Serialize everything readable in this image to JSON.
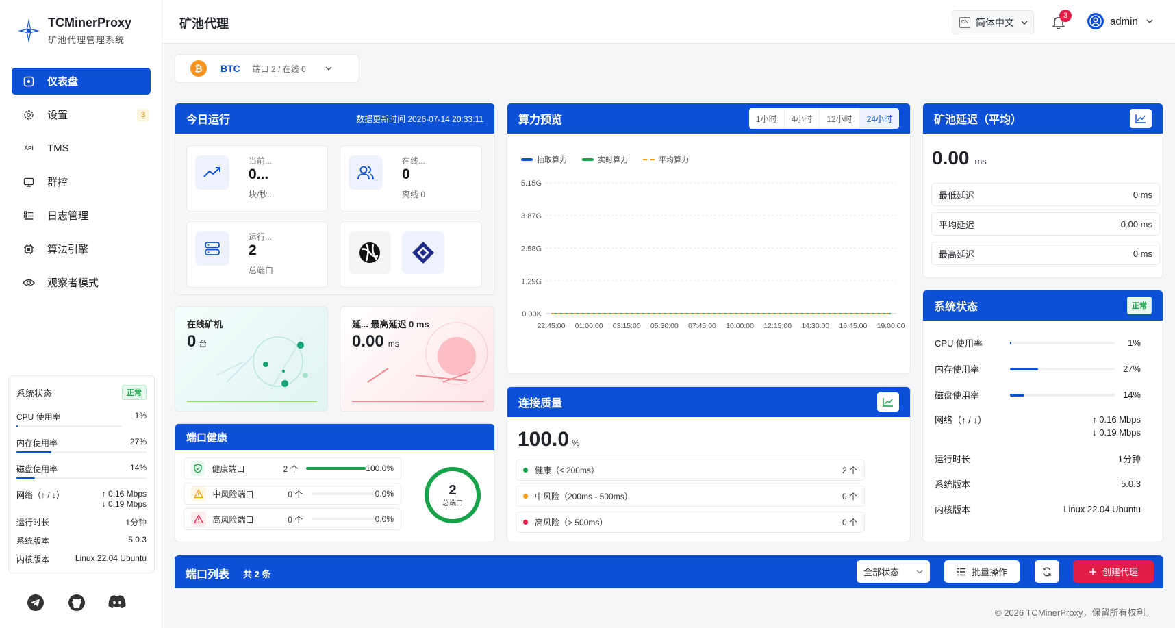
{
  "brand": {
    "title": "TCMinerProxy",
    "subtitle": "矿池代理管理系统"
  },
  "sidebar": {
    "items": [
      {
        "label": "仪表盘",
        "icon": "dashboard-icon"
      },
      {
        "label": "设置",
        "icon": "gear-icon",
        "badge": "3"
      },
      {
        "label": "TMS",
        "icon": "api-icon"
      },
      {
        "label": "群控",
        "icon": "monitor-icon"
      },
      {
        "label": "日志管理",
        "icon": "log-icon"
      },
      {
        "label": "算法引擎",
        "icon": "chip-icon"
      },
      {
        "label": "观察者模式",
        "icon": "eye-icon"
      }
    ],
    "api_text": "API",
    "status": {
      "title": "系统状态",
      "tag": "正常",
      "cpu_label": "CPU 使用率",
      "cpu_value": "1%",
      "cpu_pct": 1,
      "mem_label": "内存使用率",
      "mem_value": "27%",
      "mem_pct": 27,
      "disk_label": "磁盘使用率",
      "disk_value": "14%",
      "disk_pct": 14,
      "net_label": "网络（↑ / ↓）",
      "net_up": "↑  0.16 Mbps",
      "net_down": "↓  0.19 Mbps",
      "uptime_label": "运行时长",
      "uptime_value": "1分钟",
      "version_label": "系统版本",
      "version_value": "5.0.3",
      "kernel_label": "内核版本",
      "kernel_value": "Linux 22.04 Ubuntu"
    }
  },
  "header": {
    "title": "矿池代理",
    "lang": "简体中文",
    "lang_code": "CN",
    "notif_count": "3",
    "user": "admin"
  },
  "coin": {
    "name": "BTC",
    "info": "端口 2 / 在线 0"
  },
  "today": {
    "title": "今日运行",
    "updated": "数据更新时间 2026-07-14 20:33:11",
    "current": {
      "label": "当前...",
      "value": "0...",
      "sub": "块/秒..."
    },
    "online": {
      "label": "在线...",
      "value": "0",
      "sub": "离线 0"
    },
    "running": {
      "label": "运行...",
      "value": "2",
      "sub": "总端口"
    }
  },
  "miners_card": {
    "label": "在线矿机",
    "value": "0",
    "unit": "台"
  },
  "latency_card": {
    "label": "延...  最高延迟 0 ms",
    "value": "0.00",
    "unit": "ms"
  },
  "port_health": {
    "title": "端口健康",
    "rows": [
      {
        "label": "健康端口",
        "count": "2 个",
        "pct": "100.0%",
        "fill": 100,
        "color": "#16a34a"
      },
      {
        "label": "中风险端口",
        "count": "0 个",
        "pct": "0.0%",
        "fill": 0,
        "color": "#f59e0b"
      },
      {
        "label": "高风险端口",
        "count": "0 个",
        "pct": "0.0%",
        "fill": 0,
        "color": "#e11d48"
      }
    ],
    "total": "2",
    "total_label": "总端口"
  },
  "hashrate": {
    "title": "算力预览",
    "tabs": [
      "1小时",
      "4小时",
      "12小时",
      "24小时"
    ],
    "active_tab": 3,
    "legend": [
      "抽取算力",
      "实时算力",
      "平均算力"
    ],
    "colors": [
      "#0c50d8",
      "#16a34a",
      "#f59e0b"
    ]
  },
  "chart_data": {
    "type": "line",
    "title": "",
    "x": [
      "22:45:00",
      "01:00:00",
      "03:15:00",
      "05:30:00",
      "07:45:00",
      "10:00:00",
      "12:15:00",
      "14:30:00",
      "16:45:00",
      "19:00:00"
    ],
    "y_ticks": [
      "5.15G",
      "3.87G",
      "2.58G",
      "1.29G",
      "0.00K"
    ],
    "series": [
      {
        "name": "抽取算力",
        "values": [
          0,
          0,
          0,
          0,
          0,
          0,
          0,
          0,
          0,
          0
        ]
      },
      {
        "name": "实时算力",
        "values": [
          0,
          0,
          0,
          0,
          0,
          0,
          0,
          0,
          0,
          0
        ]
      },
      {
        "name": "平均算力",
        "values": [
          0,
          0,
          0,
          0,
          0,
          0,
          0,
          0,
          0,
          0
        ]
      }
    ],
    "grid": true,
    "legend": "top-left"
  },
  "connection": {
    "title": "连接质量",
    "value": "100.0",
    "unit": "%",
    "rows": [
      {
        "label": "健康（≤ 200ms）",
        "count": "2 个",
        "color": "#16a34a"
      },
      {
        "label": "中风险（200ms - 500ms）",
        "count": "0 个",
        "color": "#f59e0b"
      },
      {
        "label": "高风险（> 500ms）",
        "count": "0 个",
        "color": "#e11d48"
      }
    ]
  },
  "pool_latency": {
    "title": "矿池延迟（平均）",
    "value": "0.00",
    "unit": "ms",
    "rows": [
      {
        "label": "最低延迟",
        "value": "0 ms"
      },
      {
        "label": "平均延迟",
        "value": "0.00 ms"
      },
      {
        "label": "最高延迟",
        "value": "0 ms"
      }
    ]
  },
  "system": {
    "title": "系统状态",
    "tag": "正常",
    "cpu_label": "CPU 使用率",
    "cpu_value": "1%",
    "cpu_pct": 1,
    "mem_label": "内存使用率",
    "mem_value": "27%",
    "mem_pct": 27,
    "disk_label": "磁盘使用率",
    "disk_value": "14%",
    "disk_pct": 14,
    "net_label": "网络（↑ / ↓）",
    "net_up": "↑  0.16 Mbps",
    "net_down": "↓  0.19 Mbps",
    "uptime_label": "运行时长",
    "uptime_value": "1分钟",
    "version_label": "系统版本",
    "version_value": "5.0.3",
    "kernel_label": "内核版本",
    "kernel_value": "Linux 22.04 Ubuntu"
  },
  "port_list": {
    "title": "端口列表",
    "count": "共 2 条",
    "filter": "全部状态",
    "batch": "批量操作",
    "create": "创建代理"
  },
  "footer": "© 2026 TCMinerProxy，保留所有权利。"
}
